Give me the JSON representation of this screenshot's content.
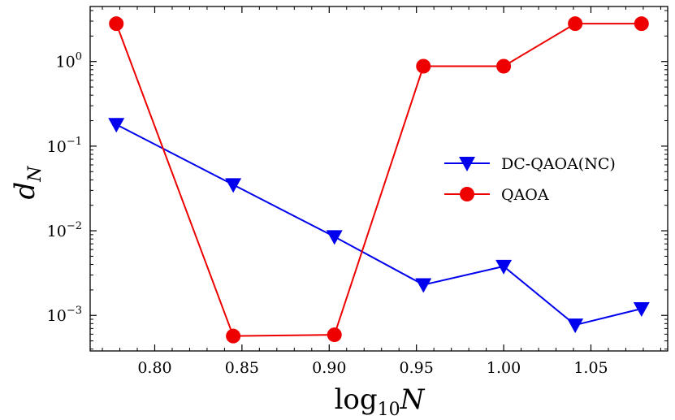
{
  "chart_data": {
    "type": "line",
    "title": "",
    "xlabel": "log10N",
    "xlabel_parts": {
      "base": "log",
      "sub": "10",
      "var": "N"
    },
    "ylabel": "dN",
    "ylabel_parts": {
      "var": "d",
      "sub": "N"
    },
    "yscale": "log",
    "xlim": [
      0.763,
      1.094
    ],
    "ylim_log10": [
      -3.42,
      0.65
    ],
    "x_ticks": [
      0.8,
      0.85,
      0.9,
      0.95,
      1.0,
      1.05
    ],
    "x_tick_labels": [
      "0.80",
      "0.85",
      "0.90",
      "0.95",
      "1.00",
      "1.05"
    ],
    "y_ticks_log10": [
      0,
      -1,
      -2,
      -3
    ],
    "y_tick_labels": [
      {
        "base": "10",
        "exp": "0"
      },
      {
        "base": "10",
        "exp": "−1"
      },
      {
        "base": "10",
        "exp": "−2"
      },
      {
        "base": "10",
        "exp": "−3"
      }
    ],
    "legend_position": "center-right",
    "series": [
      {
        "name": "DC-QAOA(NC)",
        "color": "#0000ee",
        "marker": "triangle-down",
        "x": [
          0.778,
          0.845,
          0.903,
          0.954,
          1.0,
          1.041,
          1.079
        ],
        "y": [
          0.18,
          0.035,
          0.0085,
          0.0023,
          0.0038,
          0.00077,
          0.0012
        ]
      },
      {
        "name": "QAOA",
        "color": "#ee0000",
        "marker": "circle",
        "x": [
          0.778,
          0.845,
          0.903,
          0.954,
          1.0,
          1.041,
          1.079
        ],
        "y": [
          2.8,
          0.00057,
          0.00059,
          0.88,
          0.88,
          2.8,
          2.8
        ]
      }
    ]
  }
}
